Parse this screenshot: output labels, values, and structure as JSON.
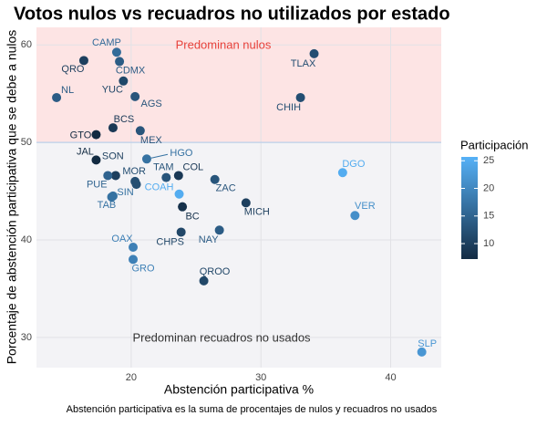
{
  "chart_data": {
    "type": "scatter",
    "title": "Votos nulos vs recuadros no utilizados por estado",
    "x_label": "Abstención participativa %",
    "y_label": "Porcentaje de abstención participativa que se debe a nulos",
    "caption": "Abstención participativa es la suma de procentajes de nulos y recuadros no usados",
    "annotations": [
      "Predominan nulos",
      "Predominan recuadros no usados"
    ],
    "threshold": 50,
    "xlim": [
      12.7,
      43.9
    ],
    "xticks": [
      20,
      30,
      40
    ],
    "ylim": [
      26.9,
      61.8
    ],
    "yticks": [
      30,
      40,
      50,
      60
    ],
    "grid": true,
    "color_legend": {
      "title": "Participación",
      "lim": [
        7.2,
        25.7
      ],
      "ticks": [
        10,
        15,
        20,
        25
      ],
      "low_color": "#132B43",
      "high_color": "#56B1F7"
    },
    "labels": [
      "CAMP",
      "QRO",
      "CDMX",
      "TLAX",
      "NL",
      "YUC",
      "AGS",
      "CHIH",
      "BCS",
      "GTO",
      "MEX",
      "JAL",
      "HGO",
      "SON",
      "MOR",
      "PUE",
      "TAM",
      "COL",
      "SIN",
      "TAB",
      "COAH",
      "ZAC",
      "BC",
      "MICH",
      "DGO",
      "VER",
      "OAX",
      "CHPS",
      "NAY",
      "GRO",
      "QROO",
      "SLP",
      null
    ],
    "x": [
      18.88,
      16.35,
      19.1,
      34.1,
      14.25,
      19.4,
      20.3,
      33.05,
      18.6,
      17.3,
      20.7,
      17.3,
      21.2,
      18.8,
      20.3,
      18.2,
      22.7,
      23.65,
      18.5,
      18.6,
      23.7,
      26.45,
      23.95,
      28.85,
      36.3,
      37.25,
      20.15,
      23.85,
      26.8,
      20.15,
      25.6,
      42.4,
      20.4
    ],
    "y": [
      59.25,
      58.4,
      58.3,
      59.1,
      54.6,
      56.3,
      54.7,
      54.6,
      51.5,
      50.8,
      51.2,
      48.2,
      48.3,
      46.6,
      46.0,
      46.6,
      46.4,
      46.6,
      44.4,
      44.5,
      44.7,
      46.2,
      43.4,
      43.8,
      46.9,
      42.5,
      39.25,
      40.8,
      41.0,
      38.0,
      35.8,
      28.5,
      45.7
    ],
    "participation": [
      16,
      10,
      14,
      12,
      14,
      11,
      13,
      12,
      9,
      7,
      13,
      7,
      17,
      10,
      12,
      15,
      13,
      9,
      17,
      17,
      25,
      13,
      8,
      10,
      25,
      21,
      19,
      11,
      14,
      19,
      11,
      22,
      12
    ]
  }
}
